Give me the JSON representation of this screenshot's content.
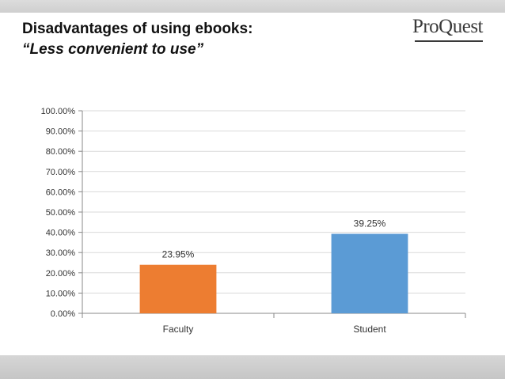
{
  "header": {
    "title": "Disadvantages of using ebooks:",
    "subtitle": "“Less convenient to use”",
    "logo_text": "ProQuest"
  },
  "chart_data": {
    "type": "bar",
    "categories": [
      "Faculty",
      "Student"
    ],
    "values": [
      23.95,
      39.25
    ],
    "data_labels": [
      "23.95%",
      "39.25%"
    ],
    "colors": [
      "#ed7d31",
      "#5b9bd5"
    ],
    "ylim": [
      0,
      100
    ],
    "yticks": [
      0,
      10,
      20,
      30,
      40,
      50,
      60,
      70,
      80,
      90,
      100
    ],
    "ytick_labels": [
      "0.00%",
      "10.00%",
      "20.00%",
      "30.00%",
      "40.00%",
      "50.00%",
      "60.00%",
      "70.00%",
      "80.00%",
      "90.00%",
      "100.00%"
    ],
    "grid": true,
    "legend": "none"
  }
}
